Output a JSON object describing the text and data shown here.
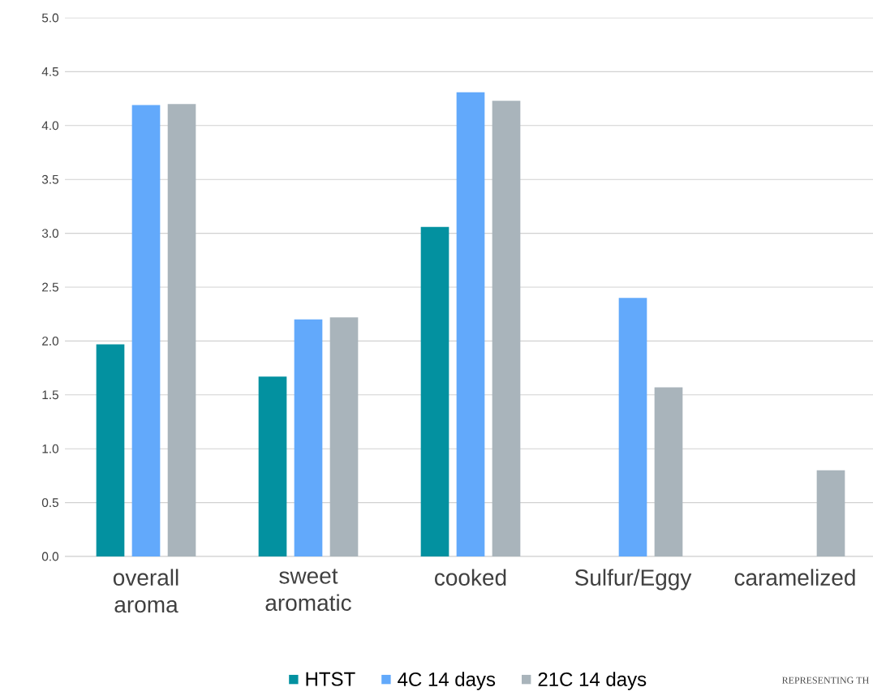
{
  "chart_data": {
    "type": "bar",
    "categories": [
      "overall aroma",
      "sweet aromatic",
      "cooked",
      "Sulfur/Eggy",
      "caramelized"
    ],
    "series": [
      {
        "name": "HTST",
        "color": "#0391a0",
        "values": [
          1.97,
          1.67,
          3.06,
          0,
          0
        ]
      },
      {
        "name": "4C 14 days",
        "color": "#62a9fb",
        "values": [
          4.19,
          2.2,
          4.31,
          2.4,
          0
        ]
      },
      {
        "name": "21C 14 days",
        "color": "#a9b4bb",
        "values": [
          4.2,
          2.22,
          4.23,
          1.57,
          0.8
        ]
      }
    ],
    "ylim": [
      0,
      5
    ],
    "yticks": [
      {
        "value": 0,
        "label": "0.0"
      },
      {
        "value": 0.5,
        "label": "0.5"
      },
      {
        "value": 1,
        "label": "1.0"
      },
      {
        "value": 1.5,
        "label": "1.5"
      },
      {
        "value": 2,
        "label": "2.0"
      },
      {
        "value": 2.5,
        "label": "2.5"
      },
      {
        "value": 3,
        "label": "3.0"
      },
      {
        "value": 3.5,
        "label": "3.5"
      },
      {
        "value": 4,
        "label": "4.0"
      },
      {
        "value": 4.5,
        "label": "4.5"
      },
      {
        "value": 5,
        "label": "5.0"
      }
    ],
    "grid": "y",
    "legend": "bottom",
    "annotations": [
      "REPRESENTING TH"
    ]
  }
}
